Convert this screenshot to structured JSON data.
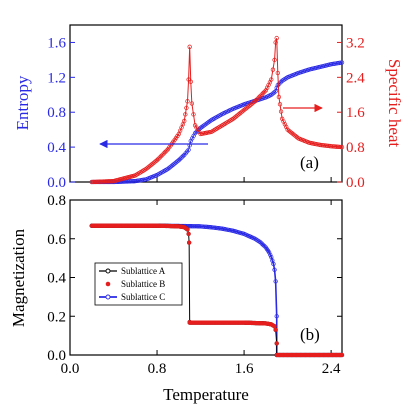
{
  "colors": {
    "entropy": "#2a2ae6",
    "specific_heat": "#e61e1e",
    "axis": "#000000",
    "sublattice_a": "#000000",
    "sublattice_b": "#e61e1e",
    "sublattice_c": "#2a2ae6"
  },
  "chart_data": [
    {
      "type": "scatter",
      "panel_label": "(a)",
      "xlim": [
        0.0,
        2.5
      ],
      "y_left": {
        "label": "Entropy",
        "lim": [
          0.0,
          1.8
        ],
        "ticks": [
          "0.0",
          "0.4",
          "0.8",
          "1.2",
          "1.6"
        ],
        "tick_values": [
          0.0,
          0.4,
          0.8,
          1.2,
          1.6
        ]
      },
      "y_right": {
        "label": "Specific heat",
        "lim": [
          0.0,
          3.6
        ],
        "ticks": [
          "0.0",
          "0.8",
          "1.6",
          "2.4",
          "3.2"
        ],
        "tick_values": [
          0.0,
          0.8,
          1.6,
          2.4,
          3.2
        ]
      },
      "series": [
        {
          "key": "entropy",
          "axis": "left",
          "x": [
            0.2,
            0.4,
            0.6,
            0.7,
            0.8,
            0.9,
            1.0,
            1.05,
            1.09,
            1.1,
            1.11,
            1.15,
            1.2,
            1.3,
            1.4,
            1.5,
            1.6,
            1.7,
            1.8,
            1.85,
            1.89,
            1.9,
            1.91,
            1.95,
            2.0,
            2.1,
            2.2,
            2.3,
            2.4,
            2.5
          ],
          "y": [
            0.0,
            0.0,
            0.01,
            0.03,
            0.08,
            0.15,
            0.25,
            0.31,
            0.37,
            0.42,
            0.47,
            0.56,
            0.62,
            0.71,
            0.78,
            0.84,
            0.89,
            0.93,
            0.97,
            1.0,
            1.04,
            1.08,
            1.11,
            1.16,
            1.2,
            1.25,
            1.29,
            1.32,
            1.35,
            1.37
          ]
        },
        {
          "key": "specific_heat",
          "axis": "right",
          "x": [
            0.2,
            0.4,
            0.6,
            0.7,
            0.8,
            0.9,
            1.0,
            1.05,
            1.08,
            1.09,
            1.1,
            1.11,
            1.12,
            1.15,
            1.2,
            1.3,
            1.4,
            1.5,
            1.6,
            1.7,
            1.8,
            1.85,
            1.88,
            1.89,
            1.9,
            1.91,
            1.92,
            1.95,
            2.0,
            2.1,
            2.2,
            2.3,
            2.4,
            2.5
          ],
          "y": [
            0.0,
            0.02,
            0.15,
            0.3,
            0.5,
            0.75,
            1.1,
            1.4,
            1.85,
            2.35,
            3.1,
            2.3,
            1.8,
            1.3,
            1.1,
            1.15,
            1.3,
            1.45,
            1.65,
            1.85,
            2.1,
            2.35,
            2.8,
            3.2,
            3.3,
            2.5,
            1.95,
            1.45,
            1.2,
            1.0,
            0.9,
            0.85,
            0.82,
            0.8
          ]
        }
      ],
      "annotations": [
        {
          "arrow": "left",
          "target_axis": "left"
        },
        {
          "arrow": "right",
          "target_axis": "right"
        }
      ]
    },
    {
      "type": "line",
      "panel_label": "(b)",
      "xlabel": "Temperature",
      "ylabel": "Magnetization",
      "xlim": [
        0.0,
        2.5
      ],
      "ylim": [
        0.0,
        0.8
      ],
      "x_ticks": [
        "0.0",
        "0.8",
        "1.6",
        "2.4"
      ],
      "x_tick_values": [
        0.0,
        0.8,
        1.6,
        2.4
      ],
      "y_ticks": [
        "0.0",
        "0.2",
        "0.4",
        "0.6",
        "0.8"
      ],
      "y_tick_values": [
        0.0,
        0.2,
        0.4,
        0.6,
        0.8
      ],
      "legend_position": "left",
      "series": [
        {
          "key": "sublattice_a",
          "name": "Sublattice A",
          "x": [
            0.2,
            0.4,
            0.6,
            0.8,
            0.9,
            1.0,
            1.05,
            1.08,
            1.09,
            1.095,
            1.1,
            1.1,
            1.2,
            1.4,
            1.6,
            1.8,
            1.85,
            1.88,
            1.89,
            1.9,
            1.9,
            2.0,
            2.2,
            2.4,
            2.5
          ],
          "y": [
            0.667,
            0.667,
            0.667,
            0.667,
            0.666,
            0.664,
            0.66,
            0.648,
            0.625,
            0.58,
            0.17,
            0.167,
            0.167,
            0.167,
            0.167,
            0.163,
            0.158,
            0.148,
            0.13,
            0.06,
            0.0,
            0.0,
            0.0,
            0.0,
            0.0
          ]
        },
        {
          "key": "sublattice_b",
          "name": "Sublattice B",
          "x": [
            0.2,
            0.4,
            0.6,
            0.8,
            0.9,
            1.0,
            1.05,
            1.08,
            1.09,
            1.095,
            1.1,
            1.1,
            1.2,
            1.4,
            1.6,
            1.8,
            1.85,
            1.88,
            1.89,
            1.9,
            1.9,
            2.0,
            2.2,
            2.4,
            2.5
          ],
          "y": [
            0.667,
            0.667,
            0.667,
            0.667,
            0.666,
            0.664,
            0.66,
            0.648,
            0.625,
            0.58,
            0.17,
            0.167,
            0.167,
            0.167,
            0.167,
            0.163,
            0.158,
            0.148,
            0.13,
            0.06,
            0.0,
            0.0,
            0.0,
            0.0,
            0.0
          ]
        },
        {
          "key": "sublattice_c",
          "name": "Sublattice C",
          "x": [
            0.2,
            0.4,
            0.6,
            0.8,
            1.0,
            1.2,
            1.3,
            1.4,
            1.5,
            1.6,
            1.7,
            1.75,
            1.8,
            1.83,
            1.85,
            1.87,
            1.88,
            1.89,
            1.9,
            1.9,
            2.0,
            2.2,
            2.4,
            2.5
          ],
          "y": [
            0.667,
            0.667,
            0.667,
            0.667,
            0.666,
            0.664,
            0.659,
            0.652,
            0.641,
            0.625,
            0.6,
            0.582,
            0.555,
            0.53,
            0.505,
            0.47,
            0.44,
            0.38,
            0.2,
            0.0,
            0.0,
            0.0,
            0.0,
            0.0
          ]
        }
      ]
    }
  ]
}
